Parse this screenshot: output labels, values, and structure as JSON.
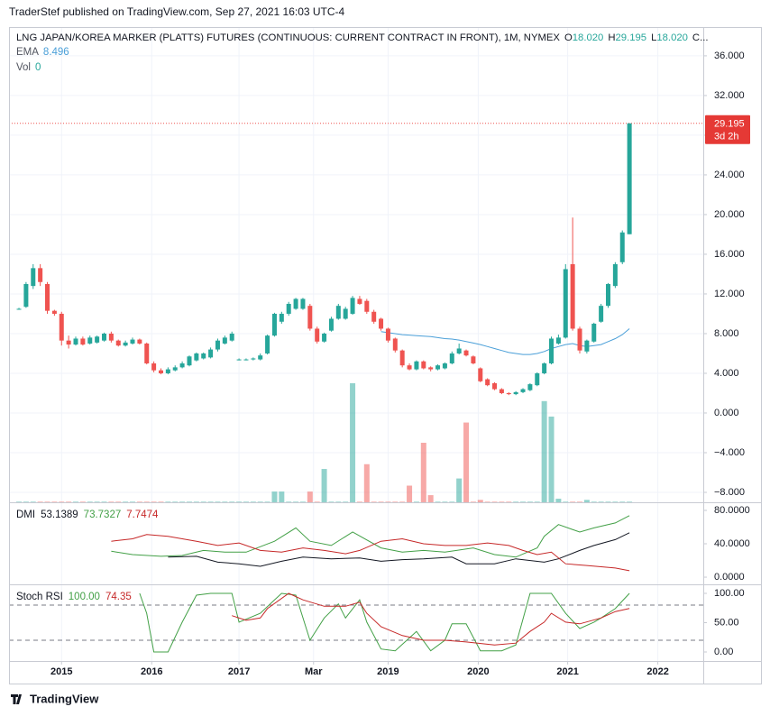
{
  "header": {
    "published": "TraderStef published on TradingView.com, Sep 27, 2021 16:03 UTC-4",
    "footer": "TradingView"
  },
  "chart_data": [
    {
      "type": "candlestick",
      "title": "LNG JAPAN/KOREA MARKER (PLATTS) FUTURES (CONTINUOUS: CURRENT CONTRACT IN FRONT), 1M, NYMEX",
      "legend": [
        {
          "label": "O",
          "value": "18.020"
        },
        {
          "label": "H",
          "value": "29.195"
        },
        {
          "label": "L",
          "value": "18.020"
        },
        {
          "label": "C..."
        }
      ],
      "up_color": "#26a69a",
      "down_color": "#ef5350",
      "ohlc": [
        [
          10.5,
          10.6,
          10.4,
          10.5
        ],
        [
          10.7,
          13.2,
          10.6,
          13
        ],
        [
          12.8,
          15,
          12.5,
          14.6
        ],
        [
          14.6,
          15,
          12.8,
          13.2
        ],
        [
          13,
          13.2,
          10,
          10.3
        ],
        [
          10.3,
          10.4,
          9.8,
          10
        ],
        [
          10,
          10.2,
          6.8,
          7.3
        ],
        [
          7.3,
          7.8,
          6.5,
          6.9
        ],
        [
          6.9,
          7.7,
          6.8,
          7.5
        ],
        [
          7.5,
          7.7,
          6.8,
          6.9
        ],
        [
          7,
          7.8,
          6.9,
          7.6
        ],
        [
          7.1,
          7.8,
          7,
          7.7
        ],
        [
          7.3,
          8.1,
          7.2,
          8
        ],
        [
          8,
          8.2,
          7.1,
          7.3
        ],
        [
          7.3,
          7.4,
          6.7,
          6.8
        ],
        [
          6.8,
          7.3,
          6.7,
          7.1
        ],
        [
          7,
          7.6,
          6.9,
          7.4
        ],
        [
          7.4,
          7.5,
          6.9,
          7
        ],
        [
          7,
          7.1,
          4.9,
          5
        ],
        [
          5,
          5.2,
          4.1,
          4.3
        ],
        [
          4.3,
          4.5,
          3.9,
          4
        ],
        [
          4,
          4.6,
          3.9,
          4.4
        ],
        [
          4.3,
          4.8,
          4.2,
          4.6
        ],
        [
          4.6,
          5.2,
          4.5,
          5
        ],
        [
          4.8,
          5.8,
          4.7,
          5.7
        ],
        [
          5.3,
          6.1,
          5.2,
          6
        ],
        [
          5.5,
          6.1,
          5.4,
          6
        ],
        [
          5.6,
          6.6,
          5.5,
          6.4
        ],
        [
          6.4,
          7.5,
          6.2,
          7.3
        ],
        [
          7,
          7.8,
          6.9,
          7.6
        ],
        [
          7.3,
          8.2,
          7.2,
          8
        ],
        [
          5.4,
          5.5,
          5.3,
          5.4
        ],
        [
          5.4,
          5.5,
          5.3,
          5.4
        ],
        [
          5.4,
          5.6,
          5.3,
          5.5
        ],
        [
          5.4,
          6,
          5.3,
          5.8
        ],
        [
          6,
          7.9,
          5.9,
          7.8
        ],
        [
          7.8,
          10.1,
          7.7,
          10
        ],
        [
          9.2,
          10.2,
          9,
          10
        ],
        [
          10,
          11.2,
          9.8,
          11
        ],
        [
          10.5,
          11.6,
          10.4,
          11.5
        ],
        [
          10.5,
          11.6,
          10.4,
          11.5
        ],
        [
          10.8,
          11,
          8.3,
          8.5
        ],
        [
          8.5,
          8.7,
          7,
          7.2
        ],
        [
          7.2,
          8.1,
          7.1,
          8
        ],
        [
          8.3,
          9.7,
          8.2,
          9.5
        ],
        [
          9.5,
          11,
          9.4,
          10.8
        ],
        [
          9.5,
          10.7,
          9.4,
          10.5
        ],
        [
          10,
          11.8,
          9.9,
          11.6
        ],
        [
          11.5,
          11.8,
          10.9,
          11
        ],
        [
          11.3,
          11.5,
          10,
          10.2
        ],
        [
          10.2,
          10.4,
          9,
          9.2
        ],
        [
          9.5,
          9.6,
          8.3,
          8.5
        ],
        [
          8.5,
          8.6,
          7.1,
          7.3
        ],
        [
          7.5,
          7.6,
          6.1,
          6.3
        ],
        [
          6.3,
          6.4,
          4.6,
          4.8
        ],
        [
          4.8,
          5,
          4.3,
          4.4
        ],
        [
          4.4,
          5.3,
          4.3,
          5.2
        ],
        [
          5.2,
          5.3,
          4.4,
          4.5
        ],
        [
          4.6,
          4.7,
          4.2,
          4.4
        ],
        [
          4.4,
          4.9,
          4.3,
          4.8
        ],
        [
          4.5,
          5.1,
          4.4,
          5
        ],
        [
          5,
          6.2,
          4.9,
          6
        ],
        [
          6,
          7,
          5.9,
          6.5
        ],
        [
          6.3,
          6.4,
          5.7,
          5.8
        ],
        [
          5.7,
          5.8,
          4.9,
          5
        ],
        [
          4.5,
          4.6,
          3.1,
          3.2
        ],
        [
          3.4,
          3.5,
          2.7,
          2.8
        ],
        [
          3,
          3.1,
          2.3,
          2.4
        ],
        [
          2.4,
          2.5,
          1.9,
          2
        ],
        [
          2,
          2.1,
          1.8,
          1.9
        ],
        [
          1.9,
          2.2,
          1.8,
          2.1
        ],
        [
          2.1,
          2.5,
          2,
          2.4
        ],
        [
          2.3,
          3,
          2.2,
          2.9
        ],
        [
          2.8,
          4.1,
          2.7,
          4
        ],
        [
          4,
          5.1,
          3.9,
          5
        ],
        [
          5,
          7.7,
          4.9,
          7.5
        ],
        [
          7,
          7.9,
          6.9,
          7.6
        ],
        [
          7.6,
          15,
          7.5,
          14.5
        ],
        [
          15,
          19.7,
          8.3,
          8.5
        ],
        [
          8.5,
          8.7,
          6,
          6.3
        ],
        [
          6.2,
          7.4,
          6,
          7.3
        ],
        [
          7.2,
          9.1,
          7.1,
          9
        ],
        [
          9.2,
          11,
          9.1,
          10.8
        ],
        [
          10.8,
          13.1,
          10.6,
          13
        ],
        [
          12.8,
          15.2,
          12.6,
          15
        ],
        [
          15.2,
          18.4,
          15,
          18.2
        ],
        [
          18.02,
          29.195,
          18.02,
          29.195
        ]
      ],
      "ema": {
        "name": "EMA",
        "color": "#4a9fd8",
        "values": [
          null,
          null,
          null,
          null,
          null,
          null,
          null,
          null,
          null,
          null,
          null,
          null,
          null,
          null,
          null,
          null,
          null,
          null,
          null,
          null,
          null,
          null,
          null,
          null,
          null,
          null,
          null,
          null,
          null,
          null,
          null,
          null,
          null,
          null,
          null,
          null,
          null,
          null,
          null,
          null,
          null,
          null,
          null,
          null,
          null,
          null,
          null,
          null,
          null,
          null,
          null,
          8.2,
          8.1,
          8.0,
          7.9,
          7.85,
          7.8,
          7.75,
          7.7,
          7.6,
          7.5,
          7.45,
          7.35,
          7.2,
          7.05,
          6.9,
          6.7,
          6.5,
          6.3,
          6.1,
          6.0,
          5.9,
          5.9,
          6.0,
          6.2,
          6.5,
          6.7,
          6.9,
          7.0,
          6.8,
          6.7,
          6.8,
          6.9,
          7.2,
          7.5,
          7.9,
          8.496
        ]
      },
      "volume": {
        "name": "Vol",
        "legend_value": 0,
        "ylim": [
          0,
          100
        ],
        "values": [
          0.5,
          0.5,
          0.5,
          0.5,
          0.5,
          0.5,
          0.5,
          0.5,
          0.5,
          0.5,
          0.5,
          0.5,
          0.5,
          0.5,
          0.5,
          0.5,
          0.5,
          0.5,
          0.5,
          0.5,
          0.5,
          0.5,
          0.5,
          0.5,
          0.5,
          0.5,
          0.5,
          0.5,
          0.5,
          0.5,
          0.5,
          0.5,
          0.5,
          0.5,
          0.5,
          0.5,
          9,
          9,
          0.5,
          0.5,
          0.5,
          9,
          0.5,
          28,
          0.5,
          0.5,
          0.5,
          100,
          0.5,
          32,
          0.5,
          0.5,
          0.5,
          0.5,
          0.5,
          14,
          0.5,
          50,
          6,
          0.5,
          0.5,
          0.5,
          20,
          67,
          0.5,
          2,
          0.5,
          0.5,
          0.5,
          0.5,
          0.5,
          0.5,
          0.5,
          0.5,
          85,
          72,
          3,
          0.5,
          0.5,
          0.5,
          2,
          0.5,
          0.5,
          0.5,
          0.5,
          0.5,
          0.5
        ]
      },
      "countdown": "3d 2h",
      "ylim": [
        -9,
        38.9
      ],
      "yticks": [
        {
          "value": 36,
          "label": "36.000"
        },
        {
          "value": 32,
          "label": "32.000"
        },
        {
          "value": 28,
          "label": "28.000"
        },
        {
          "value": 24,
          "label": "24.000"
        },
        {
          "value": 20,
          "label": "20.000"
        },
        {
          "value": 16,
          "label": "16.000"
        },
        {
          "value": 12,
          "label": "12.000"
        },
        {
          "value": 8,
          "label": "8.000"
        },
        {
          "value": 4,
          "label": "4.000"
        },
        {
          "value": 0,
          "label": "0.000"
        },
        {
          "value": -4,
          "label": "−4.000"
        },
        {
          "value": -8,
          "label": "−8.000"
        }
      ],
      "xlim": [
        -1.4,
        96.4
      ],
      "xticks": [
        {
          "value": 6,
          "label": "2015"
        },
        {
          "value": 18.7,
          "label": "2016"
        },
        {
          "value": 31,
          "label": "2017"
        },
        {
          "value": 41.5,
          "label": "Mar"
        },
        {
          "value": 52,
          "label": "2019"
        },
        {
          "value": 64.7,
          "label": "2020"
        },
        {
          "value": 77.3,
          "label": "2021"
        },
        {
          "value": 90,
          "label": "2022"
        }
      ],
      "grid": true
    },
    {
      "type": "line",
      "title": "DMI",
      "xlim": [
        -1.4,
        96.4
      ],
      "ylim": [
        -8.6,
        89.7
      ],
      "yticks": [
        {
          "value": 80,
          "label": "80.0000"
        },
        {
          "value": 40,
          "label": "40.0000"
        },
        {
          "value": 0,
          "label": "0.0000"
        }
      ],
      "series": [
        {
          "color": "#131722",
          "x": [
            21,
            25,
            28,
            31,
            34,
            37,
            40,
            44,
            48,
            51,
            54,
            57,
            61,
            63,
            67,
            70,
            74,
            76,
            79,
            81,
            84,
            86
          ],
          "values": [
            24,
            25,
            18,
            16,
            13,
            19,
            24,
            22,
            23,
            19,
            21,
            22,
            24,
            16,
            16,
            22,
            18,
            22,
            32,
            38,
            45,
            53.1389
          ]
        },
        {
          "color": "#43a047",
          "x": [
            13,
            16,
            20,
            23,
            26,
            29,
            32,
            36,
            39,
            41,
            44,
            47,
            51,
            54,
            57,
            60,
            64,
            67,
            70,
            73,
            74,
            76,
            79,
            81,
            84,
            86
          ],
          "values": [
            31,
            27,
            25,
            26,
            32,
            30,
            30,
            43,
            59,
            43,
            38,
            54,
            35,
            30,
            32,
            30,
            35,
            27,
            24,
            35,
            49,
            63,
            54,
            59,
            65,
            73.7327
          ]
        },
        {
          "color": "#c62828",
          "x": [
            13,
            16,
            18,
            21,
            25,
            28,
            31,
            34,
            37,
            40,
            43,
            46,
            48,
            51,
            54,
            57,
            60,
            63,
            66,
            69,
            71,
            73,
            75,
            77,
            80,
            84,
            86
          ],
          "values": [
            43,
            46,
            51,
            49,
            43,
            38,
            41,
            32,
            30,
            35,
            32,
            28,
            32,
            43,
            46,
            40,
            38,
            38,
            41,
            38,
            32,
            27,
            30,
            16,
            14,
            11,
            7.7474
          ]
        }
      ]
    },
    {
      "type": "line",
      "title": "Stoch RSI",
      "xlim": [
        -1.4,
        96.4
      ],
      "ylim": [
        -15.4,
        115.4
      ],
      "yticks": [
        {
          "value": 100,
          "label": "100.00"
        },
        {
          "value": 50,
          "label": "50.00"
        },
        {
          "value": 0,
          "label": "0.00"
        }
      ],
      "levels": [
        80,
        20
      ],
      "series": [
        {
          "color": "#43a047",
          "legend_label": "100.00",
          "x": [
            17,
            18,
            19,
            21,
            23,
            25,
            27,
            30,
            31,
            34,
            36,
            37,
            39,
            41,
            43,
            45,
            46,
            48,
            49,
            51,
            53,
            56,
            58,
            60,
            61,
            63,
            65,
            68,
            70,
            72,
            75,
            77,
            79,
            81,
            82,
            84,
            86
          ],
          "values": [
            100,
            66,
            0,
            0,
            51,
            97,
            100,
            100,
            51,
            66,
            89,
            100,
            97,
            20,
            58,
            82,
            58,
            89,
            51,
            5,
            2,
            35,
            2,
            20,
            48,
            48,
            2,
            2,
            12,
            100,
            100,
            66,
            40,
            51,
            58,
            74,
            100
          ]
        },
        {
          "color": "#c62828",
          "x": [
            30,
            32,
            34,
            35,
            38,
            40,
            43,
            46,
            48,
            49,
            51,
            54,
            57,
            60,
            63,
            67,
            70,
            72,
            74,
            75,
            77,
            79,
            82,
            84,
            86
          ],
          "values": [
            62,
            54,
            58,
            74,
            100,
            89,
            78,
            78,
            85,
            66,
            43,
            28,
            20,
            20,
            17,
            12,
            15,
            35,
            51,
            66,
            51,
            48,
            58,
            69,
            74.35
          ]
        }
      ]
    }
  ]
}
